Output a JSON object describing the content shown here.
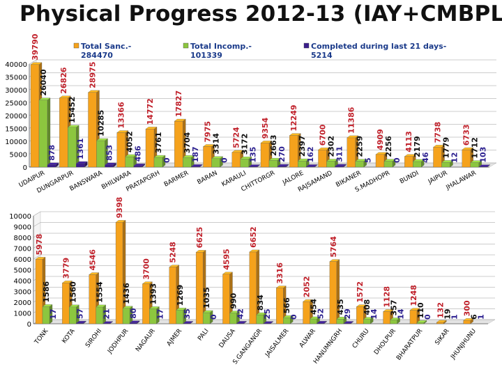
{
  "title": "Physical Progress  2012-13  (IAY+CMBPL)",
  "legend": [
    {
      "line1": "Total Sanc.-",
      "line2": "284470"
    },
    {
      "line1": "Total Incomp.-",
      "line2": "101339"
    },
    {
      "line1": "Completed during last 21 days-",
      "line2": "5214"
    }
  ],
  "colors": {
    "sanctioned": "#f5a21c",
    "incomplete": "#8cc63f",
    "completed": "#3b1e8c",
    "label_red": "#c0202a",
    "label_black": "#111111",
    "label_blue": "#2b1f8f",
    "gridline": "#9a9a9a",
    "axis_text": "#000000"
  },
  "chart_data": [
    {
      "type": "bar",
      "variant": "3d-clustered",
      "title": "",
      "ylim": [
        0,
        40000
      ],
      "yticks": [
        0,
        5000,
        10000,
        15000,
        20000,
        25000,
        30000,
        35000,
        40000
      ],
      "grid": true,
      "legend_position": "top",
      "categories": [
        "UDAIPUR",
        "DUNGARPUR",
        "BANSWARA",
        "BHILWARA",
        "PRATAPGRH",
        "BARMER",
        "BARAN",
        "KARAULI",
        "CHITTORGR",
        "JALORE",
        "RAJSAMAND",
        "BIKANER",
        "S.MADHOPR",
        "BUNDI",
        "JAIPUR",
        "JHALAWAR"
      ],
      "series": [
        {
          "name": "Total Sanc.",
          "color": "sanctioned",
          "values": [
            39790,
            26826,
            28975,
            13366,
            14772,
            17827,
            7975,
            5724,
            9354,
            12249,
            6700,
            11386,
            4909,
            4113,
            7738,
            6733
          ]
        },
        {
          "name": "Total Incomp.",
          "color": "incomplete",
          "values": [
            26040,
            15452,
            10285,
            4052,
            3761,
            3704,
            3314,
            3172,
            2663,
            2397,
            2302,
            2259,
            2256,
            2179,
            1779,
            1712
          ]
        },
        {
          "name": "Completed during last 21 days",
          "color": "completed",
          "values": [
            878,
            1361,
            853,
            486,
            0,
            187,
            0,
            135,
            270,
            162,
            311,
            5,
            0,
            46,
            12,
            103
          ]
        }
      ]
    },
    {
      "type": "bar",
      "variant": "3d-clustered",
      "title": "",
      "ylim": [
        0,
        10000
      ],
      "yticks": [
        0,
        1000,
        2000,
        3000,
        4000,
        5000,
        6000,
        7000,
        8000,
        9000,
        10000
      ],
      "grid": true,
      "categories": [
        "TONK",
        "KOTA",
        "SIROHI",
        "JODHPUR",
        "NAGAUR",
        "AJMER",
        "PALI",
        "DAUSA",
        "S.GANGANGR",
        "JAISALMER",
        "ALWAR",
        "HANUMNGRH",
        "CHURU",
        "DHOLPUR",
        "BHARATPUR",
        "SIKAR",
        "JHUNJHUNU"
      ],
      "series": [
        {
          "name": "Total Sanc.",
          "color": "sanctioned",
          "values": [
            5978,
            3779,
            4546,
            9398,
            3700,
            5248,
            6625,
            4595,
            6652,
            3316,
            2052,
            5764,
            1572,
            1128,
            1248,
            132,
            300
          ]
        },
        {
          "name": "Total Incomp.",
          "color": "incomplete",
          "values": [
            1586,
            1560,
            1554,
            1436,
            1393,
            1269,
            1035,
            990,
            834,
            566,
            454,
            435,
            408,
            357,
            110,
            19,
            6
          ]
        },
        {
          "name": "Completed during last 21 days",
          "color": "completed",
          "values": [
            17,
            57,
            21,
            80,
            17,
            35,
            0,
            42,
            25,
            0,
            52,
            29,
            14,
            14,
            0,
            1,
            1
          ]
        }
      ]
    }
  ]
}
